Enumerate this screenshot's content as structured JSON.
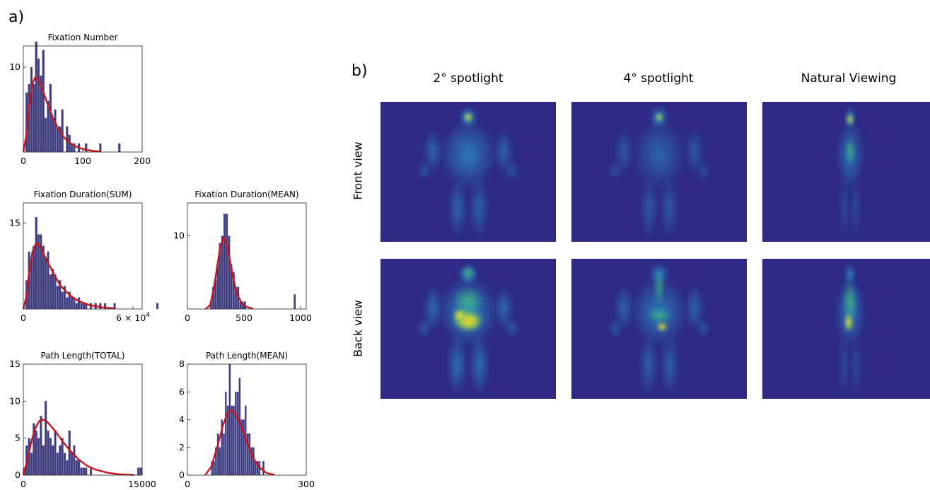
{
  "panel_a_label": "a)",
  "panel_b_label": "b)",
  "chart_data": [
    {
      "type": "bar",
      "title": "Fixation Number",
      "xticks": [
        "0",
        "100",
        "200"
      ],
      "yticks": [
        "10"
      ],
      "xlim": [
        0,
        200
      ],
      "ylim": [
        0,
        12.5
      ],
      "bin_start": 0,
      "bin_width": 4,
      "values": [
        0,
        7,
        8,
        10,
        8,
        13,
        11,
        9,
        12,
        4,
        6,
        8,
        4,
        5,
        3,
        3,
        5,
        0,
        3,
        2,
        1,
        1,
        0,
        1,
        0,
        0,
        1,
        0,
        0,
        0,
        0,
        0,
        1,
        0,
        0,
        0,
        0,
        0,
        0,
        0,
        1
      ],
      "fit": [
        [
          0,
          0
        ],
        [
          5,
          2
        ],
        [
          10,
          5.5
        ],
        [
          15,
          8
        ],
        [
          20,
          8.8
        ],
        [
          25,
          8.6
        ],
        [
          30,
          7.8
        ],
        [
          40,
          5.8
        ],
        [
          50,
          4.0
        ],
        [
          60,
          2.6
        ],
        [
          70,
          1.6
        ],
        [
          80,
          1.0
        ],
        [
          90,
          0.6
        ],
        [
          100,
          0.35
        ],
        [
          115,
          0.15
        ],
        [
          130,
          0.05
        ]
      ]
    },
    {
      "type": "bar",
      "title": "Fixation Duration(SUM)",
      "xticks": [
        "0",
        "6 × 10^4"
      ],
      "yticks": [
        "15"
      ],
      "xlim": [
        0,
        65000
      ],
      "ylim": [
        0,
        18.5
      ],
      "bin_start": 0,
      "bin_width": 1300,
      "values": [
        0,
        5,
        10,
        9,
        11,
        16,
        13,
        13,
        11,
        9,
        10,
        6,
        7,
        6,
        4,
        5,
        3,
        4,
        2,
        3,
        2,
        2,
        1,
        2,
        1,
        1,
        1,
        0,
        1,
        0,
        1,
        0,
        1,
        0,
        1,
        0,
        0,
        0,
        1,
        0,
        0,
        0,
        0,
        0,
        0,
        0,
        0,
        0,
        0,
        0,
        0,
        0,
        0,
        0,
        0,
        0,
        1
      ],
      "fit": [
        [
          0,
          0
        ],
        [
          1500,
          2
        ],
        [
          3000,
          6
        ],
        [
          5000,
          10
        ],
        [
          7000,
          11.5
        ],
        [
          9000,
          11
        ],
        [
          12000,
          9
        ],
        [
          16000,
          6.5
        ],
        [
          20000,
          4.2
        ],
        [
          25000,
          2.5
        ],
        [
          30000,
          1.4
        ],
        [
          36000,
          0.7
        ],
        [
          43000,
          0.3
        ],
        [
          50000,
          0.1
        ]
      ]
    },
    {
      "type": "bar",
      "title": "Fixation Duration(MEAN)",
      "xticks": [
        "0",
        "500",
        "1000"
      ],
      "yticks": [
        "10"
      ],
      "xlim": [
        0,
        1050
      ],
      "ylim": [
        0,
        14.5
      ],
      "bin_start": 200,
      "bin_width": 20,
      "values": [
        1,
        3,
        4,
        6,
        9,
        10,
        13,
        13,
        10,
        6,
        5,
        3,
        3,
        1,
        1,
        1
      ],
      "extra_bars": [
        [
          940,
          2
        ]
      ],
      "fit": [
        [
          160,
          0
        ],
        [
          200,
          0.5
        ],
        [
          230,
          2.5
        ],
        [
          260,
          5.5
        ],
        [
          290,
          8.5
        ],
        [
          320,
          9.8
        ],
        [
          350,
          8.8
        ],
        [
          380,
          6.3
        ],
        [
          410,
          3.8
        ],
        [
          440,
          2
        ],
        [
          480,
          0.8
        ],
        [
          520,
          0.3
        ],
        [
          580,
          0.05
        ]
      ]
    },
    {
      "type": "bar",
      "title": "Path Length(TOTAL)",
      "xticks": [
        "0",
        "15000"
      ],
      "yticks": [
        "0",
        "5",
        "10",
        "15"
      ],
      "xlim": [
        0,
        15000
      ],
      "ylim": [
        0,
        15
      ],
      "bin_start": 0,
      "bin_width": 300,
      "values": [
        1,
        4,
        5,
        3,
        7,
        6,
        5,
        8,
        4,
        10,
        6,
        5,
        4,
        6,
        3,
        4,
        5,
        3,
        2,
        6,
        3,
        4,
        2,
        2,
        1,
        1,
        1,
        0,
        1,
        0,
        0,
        0,
        0,
        0,
        0,
        0,
        0,
        0,
        0,
        0,
        0,
        0,
        0,
        0,
        0,
        0,
        0,
        0,
        1,
        1
      ],
      "fit": [
        [
          0,
          0
        ],
        [
          500,
          2
        ],
        [
          1000,
          4.5
        ],
        [
          1500,
          6.3
        ],
        [
          2000,
          7.3
        ],
        [
          2500,
          7.5
        ],
        [
          3000,
          7.2
        ],
        [
          4000,
          6.0
        ],
        [
          5000,
          4.5
        ],
        [
          6000,
          3.2
        ],
        [
          7000,
          2.1
        ],
        [
          8000,
          1.3
        ],
        [
          9000,
          0.8
        ],
        [
          10500,
          0.35
        ],
        [
          12000,
          0.12
        ],
        [
          14000,
          0.03
        ]
      ]
    },
    {
      "type": "bar",
      "title": "Path Length(MEAN)",
      "xticks": [
        "0",
        "300"
      ],
      "yticks": [
        "0",
        "2",
        "4",
        "6",
        "8"
      ],
      "xlim": [
        0,
        300
      ],
      "ylim": [
        0,
        8
      ],
      "bin_start": 60,
      "bin_width": 5,
      "values": [
        1,
        1,
        2,
        3,
        2,
        4,
        3,
        6,
        5,
        8,
        5,
        5,
        6,
        6,
        7,
        4,
        4,
        5,
        3,
        3,
        2,
        2,
        1,
        1,
        1,
        0,
        1
      ],
      "fit": [
        [
          45,
          0
        ],
        [
          60,
          0.6
        ],
        [
          75,
          2
        ],
        [
          90,
          3.6
        ],
        [
          100,
          4.4
        ],
        [
          110,
          4.7
        ],
        [
          120,
          4.5
        ],
        [
          135,
          3.6
        ],
        [
          150,
          2.4
        ],
        [
          165,
          1.3
        ],
        [
          180,
          0.6
        ],
        [
          200,
          0.15
        ],
        [
          220,
          0.02
        ]
      ]
    }
  ],
  "heatmaps": {
    "columns": [
      "2° spotlight",
      "4° spotlight",
      "Natural Viewing"
    ],
    "rows": [
      "Front view",
      "Back view"
    ],
    "background_color": "#2e2a85",
    "body_color": "#2aa3d6",
    "hot_color": "#f2d62a"
  }
}
